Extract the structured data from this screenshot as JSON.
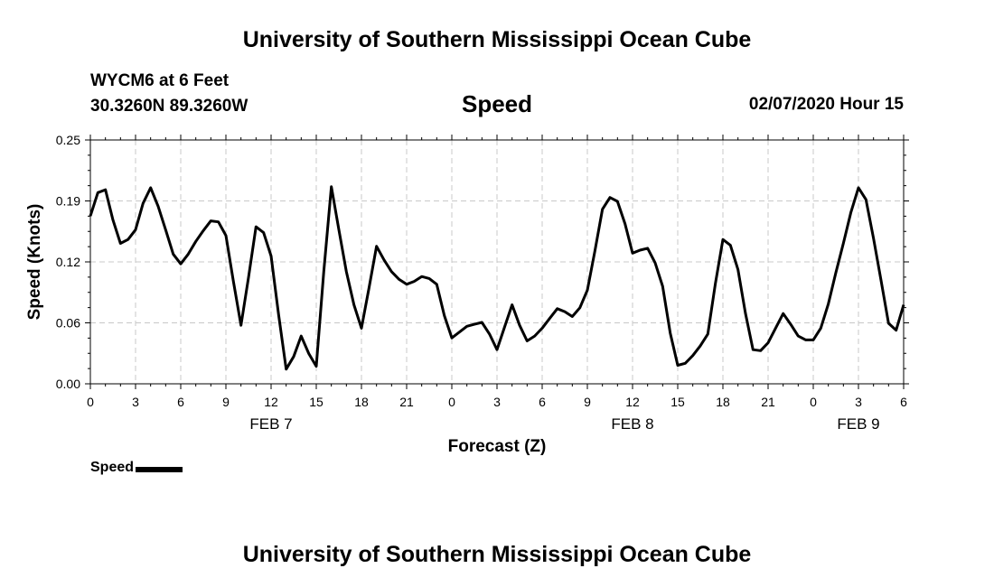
{
  "header": {
    "title": "University of Southern Mississippi Ocean Cube",
    "station_line": "WYCM6 at 6 Feet",
    "coords_line": "30.3260N 89.3260W",
    "chart_heading": "Speed",
    "datetime": "02/07/2020 Hour 15"
  },
  "footer": {
    "title": "University of Southern Mississippi Ocean Cube"
  },
  "legend": {
    "label": "Speed",
    "color": "#000000"
  },
  "chart_data": {
    "type": "line",
    "title": "Speed",
    "xlabel": "Forecast (Z)",
    "ylabel": "Speed (Knots)",
    "ylim": [
      0,
      0.25
    ],
    "xlim": [
      0,
      54
    ],
    "yticks": [
      "0.00",
      "0.06",
      "0.12",
      "0.19",
      "0.25"
    ],
    "ytick_values": [
      0,
      0.0625,
      0.125,
      0.1875,
      0.25
    ],
    "xticks": [
      {
        "h": 0,
        "label": "0"
      },
      {
        "h": 3,
        "label": "3"
      },
      {
        "h": 6,
        "label": "6"
      },
      {
        "h": 9,
        "label": "9"
      },
      {
        "h": 12,
        "label": "12"
      },
      {
        "h": 15,
        "label": "15"
      },
      {
        "h": 18,
        "label": "18"
      },
      {
        "h": 21,
        "label": "21"
      },
      {
        "h": 24,
        "label": "0"
      },
      {
        "h": 27,
        "label": "3"
      },
      {
        "h": 30,
        "label": "6"
      },
      {
        "h": 33,
        "label": "9"
      },
      {
        "h": 36,
        "label": "12"
      },
      {
        "h": 39,
        "label": "15"
      },
      {
        "h": 42,
        "label": "18"
      },
      {
        "h": 45,
        "label": "21"
      },
      {
        "h": 48,
        "label": "0"
      },
      {
        "h": 51,
        "label": "3"
      },
      {
        "h": 54,
        "label": "6"
      }
    ],
    "day_labels": [
      {
        "h": 12,
        "label": "FEB 7"
      },
      {
        "h": 36,
        "label": "FEB 8"
      },
      {
        "h": 51,
        "label": "FEB 9"
      }
    ],
    "grid": true,
    "legend_position": "bottom-left",
    "series": [
      {
        "name": "Speed",
        "color": "#000000",
        "x": [
          0,
          0.5,
          1,
          1.5,
          2,
          2.5,
          3,
          3.5,
          4,
          4.5,
          5,
          5.5,
          6,
          6.5,
          7,
          7.5,
          8,
          8.5,
          9,
          9.5,
          10,
          10.5,
          11,
          11.5,
          12,
          12.5,
          13,
          13.5,
          14,
          14.5,
          15,
          15.5,
          16,
          16.5,
          17,
          17.5,
          18,
          18.5,
          19,
          19.5,
          20,
          20.5,
          21,
          21.5,
          22,
          22.5,
          23,
          23.5,
          24,
          24.5,
          25,
          25.5,
          26,
          26.5,
          27,
          27.5,
          28,
          28.5,
          29,
          29.5,
          30,
          30.5,
          31,
          31.5,
          32,
          32.5,
          33,
          33.5,
          34,
          34.5,
          35,
          35.5,
          36,
          36.5,
          37,
          37.5,
          38,
          38.5,
          39,
          39.5,
          40,
          40.5,
          41,
          41.5,
          42,
          42.5,
          43,
          43.5,
          44,
          44.5,
          45,
          45.5,
          46,
          46.5,
          47,
          47.5,
          48,
          48.5,
          49,
          49.5,
          50,
          50.5,
          51,
          51.5,
          52,
          52.5,
          53,
          53.5,
          54
        ],
        "values": [
          0.172,
          0.196,
          0.199,
          0.168,
          0.144,
          0.148,
          0.158,
          0.185,
          0.201,
          0.182,
          0.158,
          0.133,
          0.123,
          0.133,
          0.146,
          0.157,
          0.167,
          0.166,
          0.152,
          0.105,
          0.06,
          0.109,
          0.161,
          0.155,
          0.131,
          0.071,
          0.015,
          0.028,
          0.049,
          0.031,
          0.018,
          0.115,
          0.202,
          0.158,
          0.115,
          0.081,
          0.057,
          0.098,
          0.141,
          0.127,
          0.115,
          0.107,
          0.102,
          0.105,
          0.11,
          0.108,
          0.102,
          0.07,
          0.047,
          0.053,
          0.059,
          0.061,
          0.063,
          0.051,
          0.035,
          0.058,
          0.081,
          0.06,
          0.044,
          0.049,
          0.057,
          0.067,
          0.077,
          0.074,
          0.069,
          0.078,
          0.096,
          0.136,
          0.179,
          0.191,
          0.187,
          0.164,
          0.134,
          0.137,
          0.139,
          0.124,
          0.1,
          0.052,
          0.019,
          0.021,
          0.029,
          0.039,
          0.051,
          0.103,
          0.148,
          0.142,
          0.117,
          0.072,
          0.035,
          0.034,
          0.042,
          0.057,
          0.072,
          0.061,
          0.049,
          0.045,
          0.045,
          0.057,
          0.082,
          0.114,
          0.144,
          0.176,
          0.201,
          0.189,
          0.149,
          0.106,
          0.062,
          0.055,
          0.081
        ]
      }
    ]
  }
}
